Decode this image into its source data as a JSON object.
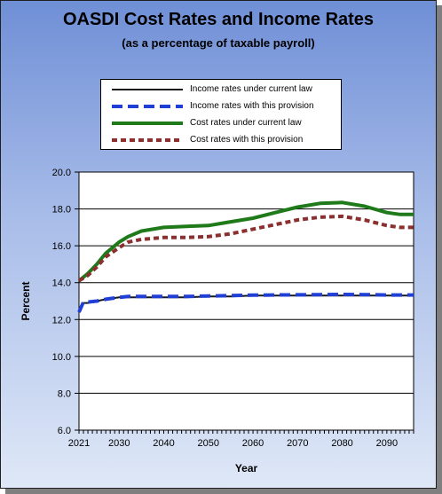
{
  "chart_data": {
    "type": "line",
    "title": "OASDI Cost Rates and Income Rates",
    "subtitle": "(as a percentage of taxable payroll)",
    "xlabel": "Year",
    "ylabel": "Percent",
    "xlim": [
      2021,
      2096
    ],
    "ylim": [
      6.0,
      20.0
    ],
    "y_ticks": [
      "6.0",
      "8.0",
      "10.0",
      "12.0",
      "14.0",
      "16.0",
      "18.0",
      "20.0"
    ],
    "x_ticks": [
      "2021",
      "2030",
      "2040",
      "2050",
      "2060",
      "2070",
      "2080",
      "2090"
    ],
    "grid": "horizontal",
    "legend_position": "top",
    "x": [
      2021,
      2022,
      2023,
      2025,
      2027,
      2030,
      2032,
      2035,
      2040,
      2045,
      2050,
      2055,
      2060,
      2065,
      2070,
      2075,
      2080,
      2085,
      2090,
      2093,
      2096
    ],
    "series": [
      {
        "name": "Income rates under current law",
        "color": "#1a1a1a",
        "style": "solid",
        "values": [
          12.4,
          12.9,
          12.9,
          13.0,
          13.1,
          13.2,
          13.2,
          13.2,
          13.2,
          13.2,
          13.25,
          13.25,
          13.3,
          13.3,
          13.3,
          13.3,
          13.3,
          13.3,
          13.3,
          13.3,
          13.3
        ]
      },
      {
        "name": "Income rates with this provision",
        "color": "#1f3fd6",
        "style": "dashed",
        "values": [
          12.4,
          12.95,
          12.95,
          13.0,
          13.1,
          13.2,
          13.25,
          13.25,
          13.25,
          13.25,
          13.28,
          13.3,
          13.32,
          13.33,
          13.34,
          13.35,
          13.36,
          13.35,
          13.33,
          13.33,
          13.33
        ]
      },
      {
        "name": "Cost rates under current law",
        "color": "#1f7a1a",
        "style": "solid",
        "values": [
          14.1,
          14.3,
          14.5,
          15.0,
          15.6,
          16.2,
          16.5,
          16.8,
          17.0,
          17.05,
          17.1,
          17.3,
          17.5,
          17.8,
          18.1,
          18.3,
          18.35,
          18.15,
          17.8,
          17.7,
          17.7
        ]
      },
      {
        "name": "Cost rates with this provision",
        "color": "#8b2f2f",
        "style": "dashed",
        "values": [
          14.1,
          14.25,
          14.4,
          14.85,
          15.4,
          15.9,
          16.2,
          16.35,
          16.45,
          16.45,
          16.5,
          16.65,
          16.9,
          17.15,
          17.4,
          17.55,
          17.6,
          17.4,
          17.1,
          17.0,
          17.0
        ]
      }
    ]
  }
}
